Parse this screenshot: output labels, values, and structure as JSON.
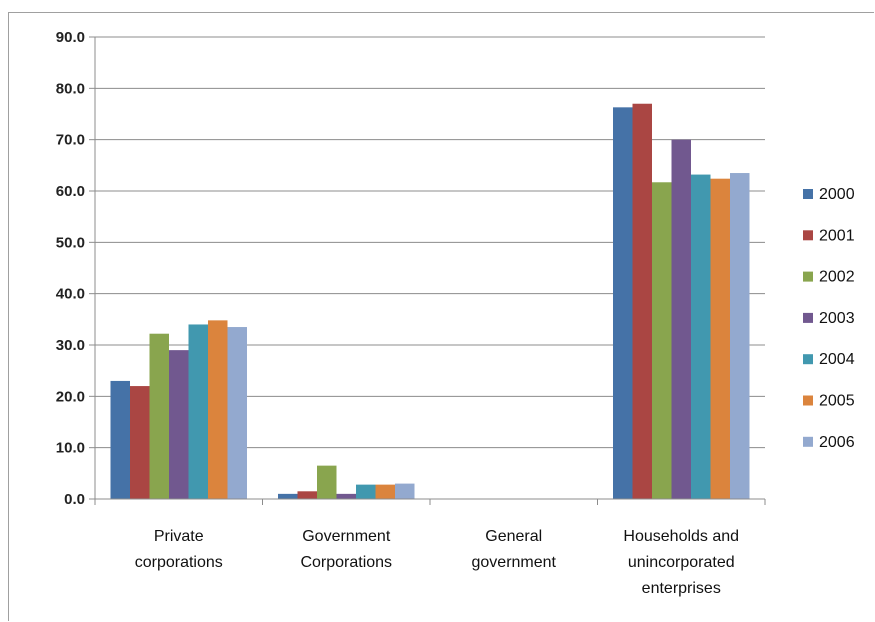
{
  "chart_data": {
    "type": "bar",
    "categories": [
      [
        "Private",
        "corporations"
      ],
      [
        "Government",
        "Corporations"
      ],
      [
        "General",
        "government"
      ],
      [
        "Households and",
        "unincorporated",
        "enterprises"
      ]
    ],
    "series": [
      {
        "name": "2000",
        "color": "#4572A7",
        "values": [
          23.0,
          1.0,
          0.0,
          76.3
        ]
      },
      {
        "name": "2001",
        "color": "#AA4643",
        "values": [
          22.0,
          1.5,
          0.0,
          77.0
        ]
      },
      {
        "name": "2002",
        "color": "#89A54E",
        "values": [
          32.2,
          6.5,
          0.0,
          61.7
        ]
      },
      {
        "name": "2003",
        "color": "#71588F",
        "values": [
          29.0,
          1.0,
          0.0,
          70.0
        ]
      },
      {
        "name": "2004",
        "color": "#4198AF",
        "values": [
          34.0,
          2.8,
          0.0,
          63.2
        ]
      },
      {
        "name": "2005",
        "color": "#DB843D",
        "values": [
          34.8,
          2.8,
          0.0,
          62.4
        ]
      },
      {
        "name": "2006",
        "color": "#93A9CF",
        "values": [
          33.5,
          3.0,
          0.0,
          63.5
        ]
      }
    ],
    "yticks": [
      "0.0",
      "10.0",
      "20.0",
      "30.0",
      "40.0",
      "50.0",
      "60.0",
      "70.0",
      "80.0",
      "90.0"
    ],
    "ylim": [
      0,
      90
    ],
    "grid": true,
    "legend": "right"
  }
}
